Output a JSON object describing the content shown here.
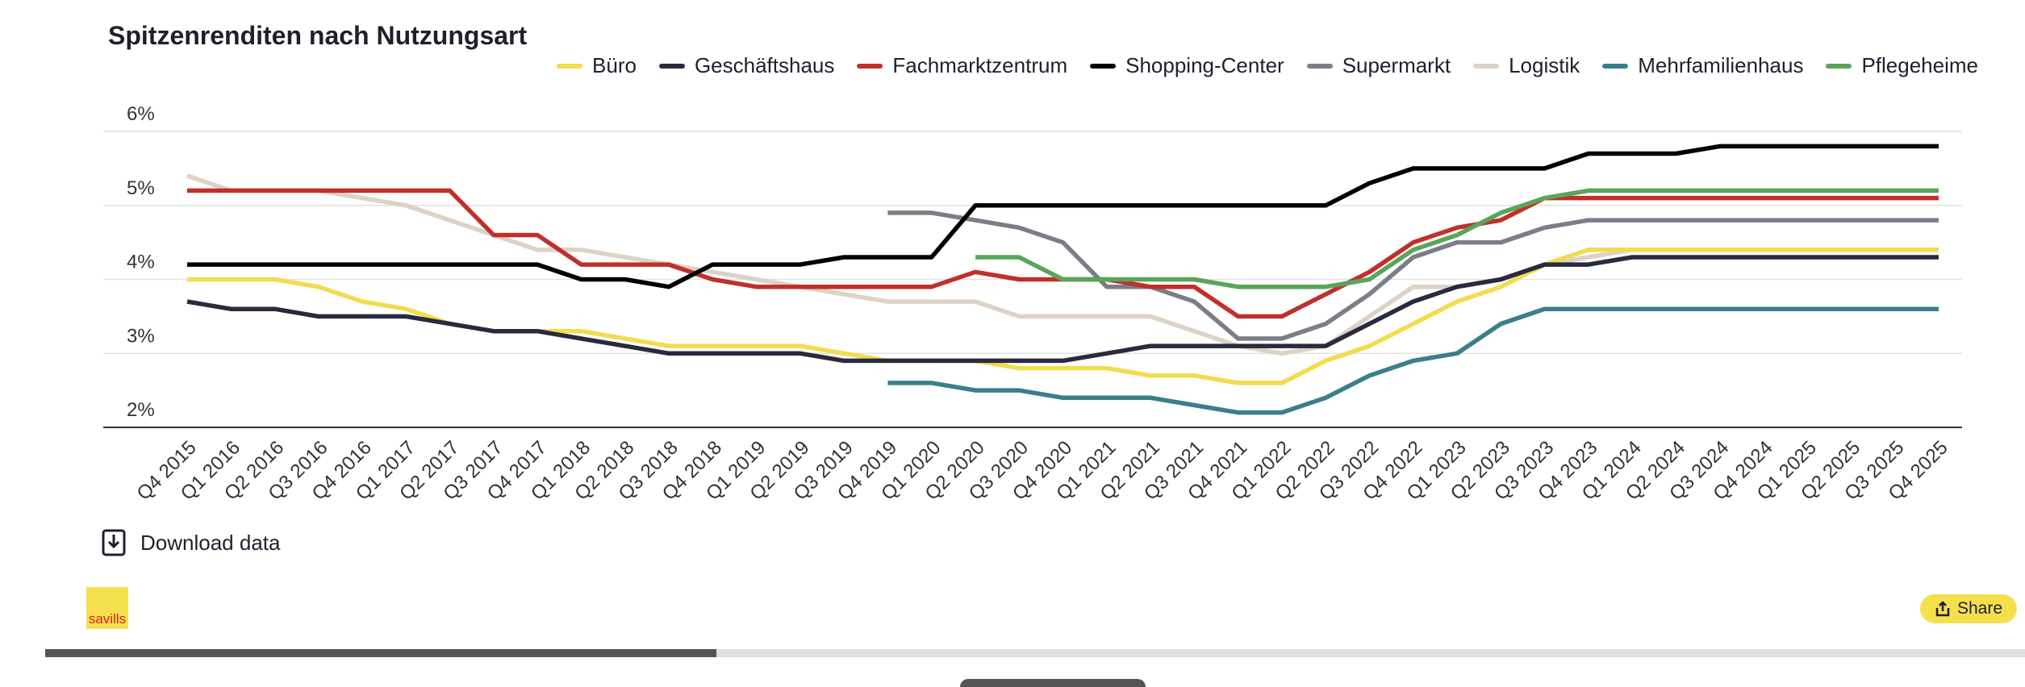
{
  "chart_data": {
    "type": "line",
    "title": "Spitzenrenditen nach Nutzungsart",
    "categories": [
      "Q4 2015",
      "Q1 2016",
      "Q2 2016",
      "Q3 2016",
      "Q4 2016",
      "Q1 2017",
      "Q2 2017",
      "Q3 2017",
      "Q4 2017",
      "Q1 2018",
      "Q2 2018",
      "Q3 2018",
      "Q4 2018",
      "Q1 2019",
      "Q2 2019",
      "Q3 2019",
      "Q4 2019",
      "Q1 2020",
      "Q2 2020",
      "Q3 2020",
      "Q4 2020",
      "Q1 2021",
      "Q2 2021",
      "Q3 2021",
      "Q4 2021",
      "Q1 2022",
      "Q2 2022",
      "Q3 2022",
      "Q4 2022",
      "Q1 2023",
      "Q2 2023",
      "Q3 2023",
      "Q4 2023",
      "Q1 2024",
      "Q2 2024",
      "Q3 2024",
      "Q4 2024",
      "Q1 2025",
      "Q2 2025",
      "Q3 2025",
      "Q4 2025"
    ],
    "series": [
      {
        "name": "Büro",
        "color": "#f2dc4f",
        "values": [
          4.0,
          4.0,
          4.0,
          3.9,
          3.7,
          3.6,
          3.4,
          3.3,
          3.3,
          3.3,
          3.2,
          3.1,
          3.1,
          3.1,
          3.1,
          3.0,
          2.9,
          2.9,
          2.9,
          2.8,
          2.8,
          2.8,
          2.7,
          2.7,
          2.6,
          2.6,
          2.9,
          3.1,
          3.4,
          3.7,
          3.9,
          4.2,
          4.4,
          4.4,
          4.4,
          4.4,
          4.4,
          4.4,
          4.4,
          4.4,
          4.4
        ]
      },
      {
        "name": "Geschäftshaus",
        "color": "#2a2a3e",
        "values": [
          3.7,
          3.6,
          3.6,
          3.5,
          3.5,
          3.5,
          3.4,
          3.3,
          3.3,
          3.2,
          3.1,
          3.0,
          3.0,
          3.0,
          3.0,
          2.9,
          2.9,
          2.9,
          2.9,
          2.9,
          2.9,
          3.0,
          3.1,
          3.1,
          3.1,
          3.1,
          3.1,
          3.4,
          3.7,
          3.9,
          4.0,
          4.2,
          4.2,
          4.3,
          4.3,
          4.3,
          4.3,
          4.3,
          4.3,
          4.3,
          4.3
        ]
      },
      {
        "name": "Fachmarktzentrum",
        "color": "#c0302b",
        "values": [
          5.2,
          5.2,
          5.2,
          5.2,
          5.2,
          5.2,
          5.2,
          4.6,
          4.6,
          4.2,
          4.2,
          4.2,
          4.0,
          3.9,
          3.9,
          3.9,
          3.9,
          3.9,
          4.1,
          4.0,
          4.0,
          4.0,
          3.9,
          3.9,
          3.5,
          3.5,
          3.8,
          4.1,
          4.5,
          4.7,
          4.8,
          5.1,
          5.1,
          5.1,
          5.1,
          5.1,
          5.1,
          5.1,
          5.1,
          5.1,
          5.1
        ]
      },
      {
        "name": "Shopping-Center",
        "color": "#000000",
        "values": [
          4.2,
          4.2,
          4.2,
          4.2,
          4.2,
          4.2,
          4.2,
          4.2,
          4.2,
          4.0,
          4.0,
          3.9,
          4.2,
          4.2,
          4.2,
          4.3,
          4.3,
          4.3,
          5.0,
          5.0,
          5.0,
          5.0,
          5.0,
          5.0,
          5.0,
          5.0,
          5.0,
          5.3,
          5.5,
          5.5,
          5.5,
          5.5,
          5.7,
          5.7,
          5.7,
          5.8,
          5.8,
          5.8,
          5.8,
          5.8,
          5.8
        ]
      },
      {
        "name": "Supermarkt",
        "color": "#7a7f87",
        "values": [
          null,
          null,
          null,
          null,
          null,
          null,
          null,
          null,
          null,
          null,
          null,
          null,
          null,
          null,
          null,
          null,
          4.9,
          4.9,
          4.8,
          4.7,
          4.5,
          3.9,
          3.9,
          3.7,
          3.2,
          3.2,
          3.4,
          3.8,
          4.3,
          4.5,
          4.5,
          4.7,
          4.8,
          4.8,
          4.8,
          4.8,
          4.8,
          4.8,
          4.8,
          4.8,
          4.8
        ]
      },
      {
        "name": "Logistik",
        "color": "#dcd2c6",
        "values": [
          5.4,
          5.2,
          5.2,
          5.2,
          5.1,
          5.0,
          4.8,
          4.6,
          4.4,
          4.4,
          4.3,
          4.2,
          4.1,
          4.0,
          3.9,
          3.8,
          3.7,
          3.7,
          3.7,
          3.5,
          3.5,
          3.5,
          3.5,
          3.3,
          3.1,
          3.0,
          3.1,
          3.5,
          3.9,
          3.9,
          4.0,
          4.2,
          4.3,
          4.4,
          4.4,
          4.4,
          4.4,
          4.4,
          4.4,
          4.4,
          4.4
        ]
      },
      {
        "name": "Mehrfamilienhaus",
        "color": "#3a7f8a",
        "values": [
          null,
          null,
          null,
          null,
          null,
          null,
          null,
          null,
          null,
          null,
          null,
          null,
          null,
          null,
          null,
          null,
          2.6,
          2.6,
          2.5,
          2.5,
          2.4,
          2.4,
          2.4,
          2.3,
          2.2,
          2.2,
          2.4,
          2.7,
          2.9,
          3.0,
          3.4,
          3.6,
          3.6,
          3.6,
          3.6,
          3.6,
          3.6,
          3.6,
          3.6,
          3.6,
          3.6
        ]
      },
      {
        "name": "Pflegeheime",
        "color": "#5aa55a",
        "values": [
          null,
          null,
          null,
          null,
          null,
          null,
          null,
          null,
          null,
          null,
          null,
          null,
          null,
          null,
          null,
          null,
          null,
          null,
          4.3,
          4.3,
          4.0,
          4.0,
          4.0,
          4.0,
          3.9,
          3.9,
          3.9,
          4.0,
          4.4,
          4.6,
          4.9,
          5.1,
          5.2,
          5.2,
          5.2,
          5.2,
          5.2,
          5.2,
          5.2,
          5.2,
          5.2
        ]
      }
    ],
    "ylim": [
      2,
      6
    ],
    "yticks": [
      {
        "value": 2,
        "label": "2%"
      },
      {
        "value": 3,
        "label": "3%"
      },
      {
        "value": 4,
        "label": "4%"
      },
      {
        "value": 5,
        "label": "5%"
      },
      {
        "value": 6,
        "label": "6%"
      }
    ],
    "grid": true
  },
  "download_label": "Download data",
  "logo_text": "savills",
  "share_label": "Share"
}
